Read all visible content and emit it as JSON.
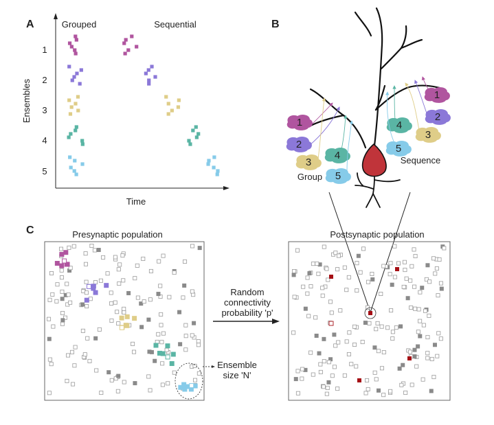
{
  "colors": {
    "c1": "#b0559f",
    "c2": "#8b78d8",
    "c3": "#dfcd88",
    "c4": "#5ab5a4",
    "c5": "#86cbe9",
    "gray": "#8a8a8a",
    "red": "#c0343a",
    "red_dark": "#a50f15"
  },
  "panelA": {
    "label": "A",
    "title_grouped": "Grouped",
    "title_sequential": "Sequential",
    "ylabel": "Ensembles",
    "xlabel": "Time",
    "yticks": [
      "1",
      "2",
      "3",
      "4",
      "5"
    ]
  },
  "panelB": {
    "label": "B",
    "group_label": "Group",
    "sequence_label": "Sequence",
    "group_numbers": [
      "1",
      "2",
      "3",
      "4",
      "5"
    ],
    "sequence_numbers": [
      "1",
      "2",
      "3",
      "4",
      "5"
    ]
  },
  "panelC": {
    "label": "C",
    "pre_title": "Presynaptic population",
    "post_title": "Postsynaptic population",
    "arrow_label_line1": "Random",
    "arrow_label_line2": "connectivity",
    "arrow_label_line3": "probability 'p'",
    "ensemble_label_line1": "Ensemble",
    "ensemble_label_line2": "size 'N'"
  }
}
